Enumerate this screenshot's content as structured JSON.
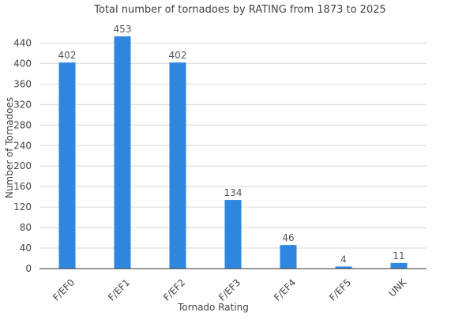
{
  "chart_data": {
    "type": "bar",
    "title": "Total number of tornadoes by RATING from 1873 to 2025",
    "xlabel": "Tornado Rating",
    "ylabel": "Number of Tornadoes",
    "categories": [
      "F/EF0",
      "F/EF1",
      "F/EF2",
      "F/EF3",
      "F/EF4",
      "F/EF5",
      "UNK"
    ],
    "values": [
      402,
      453,
      402,
      134,
      46,
      4,
      11
    ],
    "ylim": [
      0,
      470
    ],
    "yticks": [
      0,
      40,
      80,
      120,
      160,
      200,
      240,
      280,
      320,
      360,
      400,
      440
    ],
    "grid": true,
    "bar_color": "#2e86de"
  }
}
